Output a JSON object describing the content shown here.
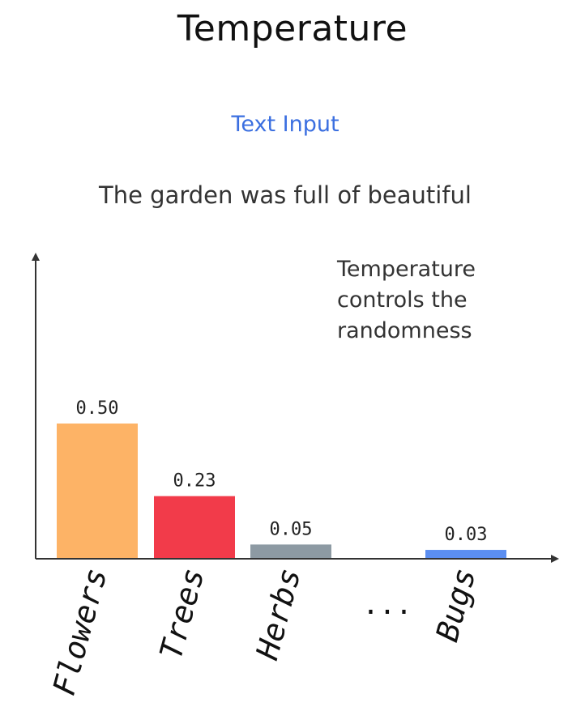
{
  "title": "Temperature",
  "subtitle": "Text Input",
  "prompt": "The garden was full of beautiful",
  "note": [
    "Temperature",
    "controls the",
    "randomness"
  ],
  "chart_data": {
    "type": "bar",
    "categories": [
      "Flowers",
      "Trees",
      "Herbs",
      "...",
      "Bugs"
    ],
    "values": [
      0.5,
      0.23,
      0.05,
      null,
      0.03
    ],
    "value_labels": [
      "0.50",
      "0.23",
      "0.05",
      "",
      "0.03"
    ],
    "colors": [
      "#fdb366",
      "#f23b4a",
      "#8d9aa3",
      "",
      "#5b8ef0"
    ],
    "ylim": [
      0,
      0.5
    ],
    "grid": false,
    "xlabel": "",
    "ylabel": ""
  }
}
